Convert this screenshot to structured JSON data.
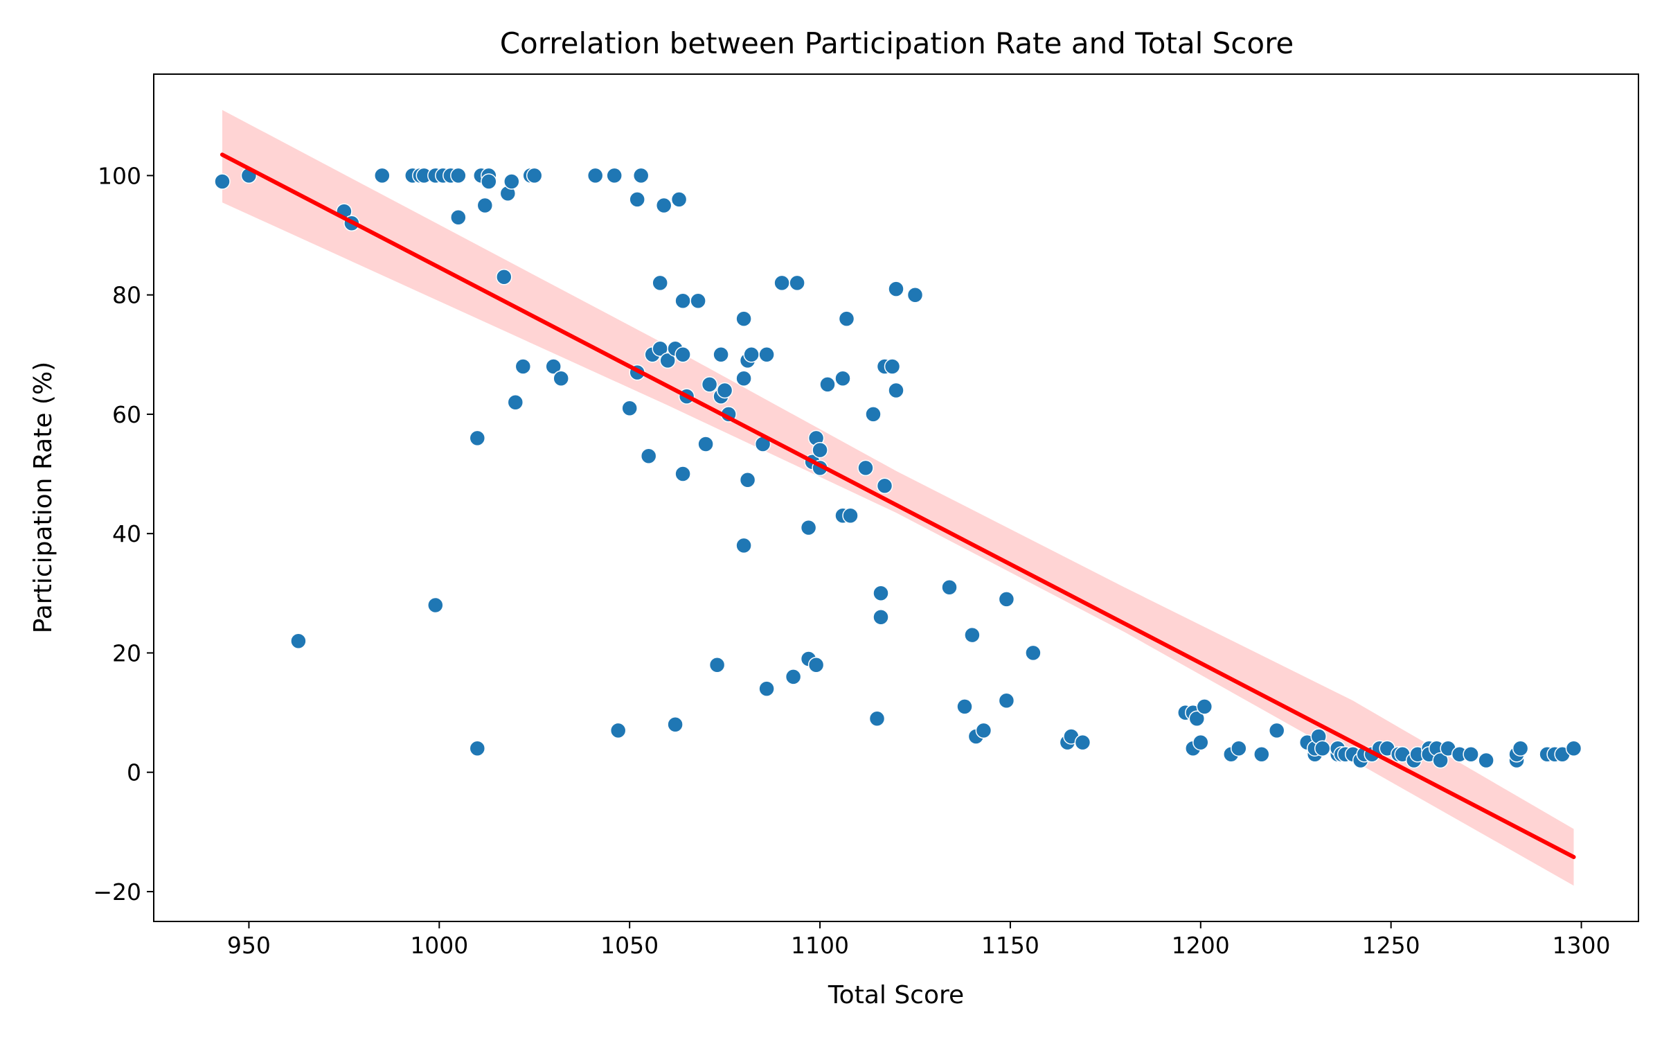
{
  "chart_data": {
    "type": "scatter",
    "title": "Correlation between Participation Rate and Total Score",
    "xlabel": "Total Score",
    "ylabel": "Participation Rate (%)",
    "xlim": [
      925,
      1315
    ],
    "ylim": [
      -25,
      117
    ],
    "xticks": [
      950,
      1000,
      1050,
      1100,
      1150,
      1200,
      1250,
      1300
    ],
    "yticks": [
      -20,
      0,
      20,
      40,
      60,
      80,
      100
    ],
    "grid": false,
    "legend": "none",
    "colors": {
      "points": "#1f77b4",
      "regression_line": "#ff0000",
      "confidence_band": "#ffcccc"
    },
    "regression": {
      "x": [
        943,
        1298
      ],
      "y": [
        103.5,
        -14.2
      ]
    },
    "confidence_band": {
      "x": [
        943,
        1060,
        1120,
        1180,
        1240,
        1298
      ],
      "upper": [
        111,
        71.5,
        50.5,
        31,
        12,
        -9.5
      ],
      "lower": [
        95.5,
        61.5,
        43.5,
        23.5,
        2,
        -19
      ]
    },
    "points": [
      {
        "x": 943,
        "y": 99
      },
      {
        "x": 950,
        "y": 100
      },
      {
        "x": 963,
        "y": 22
      },
      {
        "x": 975,
        "y": 94
      },
      {
        "x": 977,
        "y": 92
      },
      {
        "x": 985,
        "y": 100
      },
      {
        "x": 993,
        "y": 100
      },
      {
        "x": 995,
        "y": 100
      },
      {
        "x": 996,
        "y": 100
      },
      {
        "x": 999,
        "y": 100
      },
      {
        "x": 999,
        "y": 28
      },
      {
        "x": 1001,
        "y": 100
      },
      {
        "x": 1003,
        "y": 100
      },
      {
        "x": 1005,
        "y": 100
      },
      {
        "x": 1005,
        "y": 93
      },
      {
        "x": 1010,
        "y": 56
      },
      {
        "x": 1010,
        "y": 4
      },
      {
        "x": 1011,
        "y": 100
      },
      {
        "x": 1012,
        "y": 95
      },
      {
        "x": 1013,
        "y": 100
      },
      {
        "x": 1013,
        "y": 99
      },
      {
        "x": 1017,
        "y": 83
      },
      {
        "x": 1018,
        "y": 97
      },
      {
        "x": 1019,
        "y": 99
      },
      {
        "x": 1020,
        "y": 62
      },
      {
        "x": 1022,
        "y": 68
      },
      {
        "x": 1024,
        "y": 100
      },
      {
        "x": 1025,
        "y": 100
      },
      {
        "x": 1030,
        "y": 68
      },
      {
        "x": 1032,
        "y": 66
      },
      {
        "x": 1041,
        "y": 100
      },
      {
        "x": 1046,
        "y": 100
      },
      {
        "x": 1047,
        "y": 7
      },
      {
        "x": 1050,
        "y": 61
      },
      {
        "x": 1052,
        "y": 96
      },
      {
        "x": 1052,
        "y": 67
      },
      {
        "x": 1053,
        "y": 100
      },
      {
        "x": 1055,
        "y": 53
      },
      {
        "x": 1056,
        "y": 70
      },
      {
        "x": 1058,
        "y": 82
      },
      {
        "x": 1058,
        "y": 71
      },
      {
        "x": 1059,
        "y": 95
      },
      {
        "x": 1060,
        "y": 69
      },
      {
        "x": 1062,
        "y": 71
      },
      {
        "x": 1062,
        "y": 8
      },
      {
        "x": 1063,
        "y": 96
      },
      {
        "x": 1064,
        "y": 79
      },
      {
        "x": 1064,
        "y": 70
      },
      {
        "x": 1064,
        "y": 50
      },
      {
        "x": 1065,
        "y": 63
      },
      {
        "x": 1068,
        "y": 79
      },
      {
        "x": 1070,
        "y": 55
      },
      {
        "x": 1071,
        "y": 65
      },
      {
        "x": 1073,
        "y": 18
      },
      {
        "x": 1074,
        "y": 70
      },
      {
        "x": 1074,
        "y": 63
      },
      {
        "x": 1075,
        "y": 64
      },
      {
        "x": 1076,
        "y": 60
      },
      {
        "x": 1080,
        "y": 76
      },
      {
        "x": 1080,
        "y": 66
      },
      {
        "x": 1080,
        "y": 38
      },
      {
        "x": 1081,
        "y": 69
      },
      {
        "x": 1081,
        "y": 49
      },
      {
        "x": 1082,
        "y": 70
      },
      {
        "x": 1085,
        "y": 55
      },
      {
        "x": 1086,
        "y": 70
      },
      {
        "x": 1086,
        "y": 14
      },
      {
        "x": 1090,
        "y": 82
      },
      {
        "x": 1093,
        "y": 16
      },
      {
        "x": 1094,
        "y": 82
      },
      {
        "x": 1097,
        "y": 41
      },
      {
        "x": 1097,
        "y": 19
      },
      {
        "x": 1098,
        "y": 52
      },
      {
        "x": 1099,
        "y": 56
      },
      {
        "x": 1099,
        "y": 18
      },
      {
        "x": 1100,
        "y": 54
      },
      {
        "x": 1100,
        "y": 51
      },
      {
        "x": 1102,
        "y": 65
      },
      {
        "x": 1106,
        "y": 66
      },
      {
        "x": 1106,
        "y": 43
      },
      {
        "x": 1107,
        "y": 76
      },
      {
        "x": 1108,
        "y": 43
      },
      {
        "x": 1112,
        "y": 51
      },
      {
        "x": 1114,
        "y": 60
      },
      {
        "x": 1115,
        "y": 9
      },
      {
        "x": 1116,
        "y": 30
      },
      {
        "x": 1116,
        "y": 26
      },
      {
        "x": 1117,
        "y": 68
      },
      {
        "x": 1117,
        "y": 48
      },
      {
        "x": 1119,
        "y": 68
      },
      {
        "x": 1120,
        "y": 81
      },
      {
        "x": 1120,
        "y": 64
      },
      {
        "x": 1125,
        "y": 80
      },
      {
        "x": 1134,
        "y": 31
      },
      {
        "x": 1138,
        "y": 11
      },
      {
        "x": 1140,
        "y": 23
      },
      {
        "x": 1141,
        "y": 6
      },
      {
        "x": 1143,
        "y": 7
      },
      {
        "x": 1149,
        "y": 29
      },
      {
        "x": 1149,
        "y": 12
      },
      {
        "x": 1156,
        "y": 20
      },
      {
        "x": 1165,
        "y": 5
      },
      {
        "x": 1166,
        "y": 6
      },
      {
        "x": 1169,
        "y": 5
      },
      {
        "x": 1196,
        "y": 10
      },
      {
        "x": 1198,
        "y": 10
      },
      {
        "x": 1198,
        "y": 4
      },
      {
        "x": 1199,
        "y": 9
      },
      {
        "x": 1200,
        "y": 5
      },
      {
        "x": 1201,
        "y": 11
      },
      {
        "x": 1208,
        "y": 3
      },
      {
        "x": 1210,
        "y": 4
      },
      {
        "x": 1216,
        "y": 3
      },
      {
        "x": 1220,
        "y": 7
      },
      {
        "x": 1228,
        "y": 5
      },
      {
        "x": 1230,
        "y": 3
      },
      {
        "x": 1230,
        "y": 4
      },
      {
        "x": 1231,
        "y": 6
      },
      {
        "x": 1232,
        "y": 4
      },
      {
        "x": 1236,
        "y": 3
      },
      {
        "x": 1236,
        "y": 4
      },
      {
        "x": 1237,
        "y": 3
      },
      {
        "x": 1238,
        "y": 3
      },
      {
        "x": 1240,
        "y": 3
      },
      {
        "x": 1242,
        "y": 2
      },
      {
        "x": 1243,
        "y": 3
      },
      {
        "x": 1245,
        "y": 3
      },
      {
        "x": 1247,
        "y": 4
      },
      {
        "x": 1249,
        "y": 4
      },
      {
        "x": 1252,
        "y": 3
      },
      {
        "x": 1253,
        "y": 3
      },
      {
        "x": 1256,
        "y": 2
      },
      {
        "x": 1257,
        "y": 3
      },
      {
        "x": 1260,
        "y": 4
      },
      {
        "x": 1260,
        "y": 3
      },
      {
        "x": 1262,
        "y": 4
      },
      {
        "x": 1263,
        "y": 2
      },
      {
        "x": 1265,
        "y": 4
      },
      {
        "x": 1268,
        "y": 3
      },
      {
        "x": 1271,
        "y": 3
      },
      {
        "x": 1275,
        "y": 2
      },
      {
        "x": 1283,
        "y": 2
      },
      {
        "x": 1283,
        "y": 3
      },
      {
        "x": 1284,
        "y": 4
      },
      {
        "x": 1291,
        "y": 3
      },
      {
        "x": 1293,
        "y": 3
      },
      {
        "x": 1295,
        "y": 3
      },
      {
        "x": 1298,
        "y": 4
      }
    ]
  }
}
